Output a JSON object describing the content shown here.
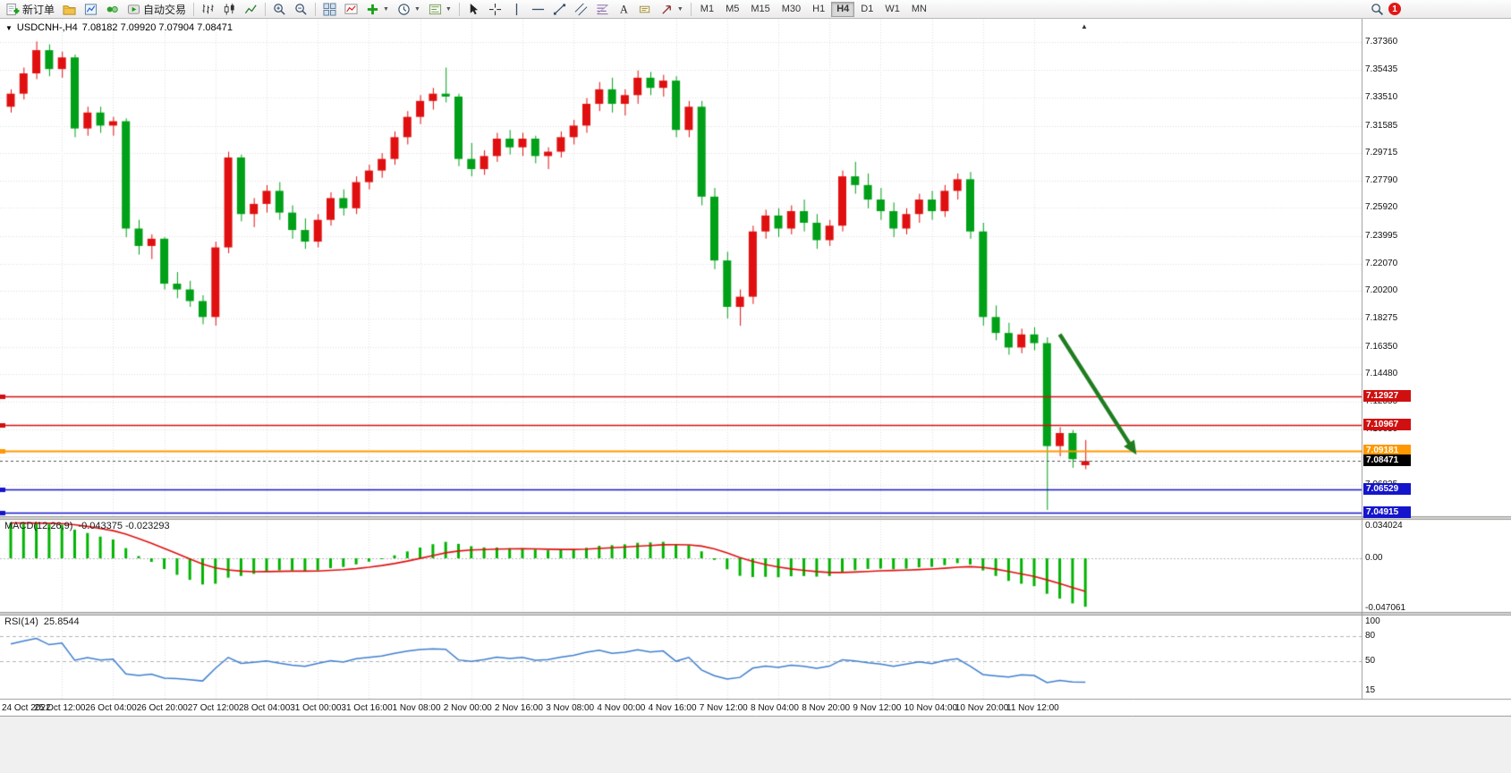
{
  "toolbar": {
    "new_order_label": "新订单",
    "autotrading_label": "自动交易",
    "timeframes": [
      "M1",
      "M5",
      "M15",
      "M30",
      "H1",
      "H4",
      "D1",
      "W1",
      "MN"
    ],
    "active_timeframe": "H4",
    "notification_count": "1"
  },
  "chart_data": {
    "type": "candlestick",
    "title": "USDCNH-,H4",
    "ohlc_text": "7.08182 7.09920 7.07904 7.08471",
    "colors": {
      "up": "#e01010",
      "down": "#00a018",
      "grid": "#e0e0e0",
      "macd_hist": "#00b400",
      "macd_signal": "#e01010",
      "rsi": "#3f7fd0",
      "arrow": "#1f7d1f",
      "axis_text": "#111111"
    },
    "price_axis_ticks": [
      "7.37360",
      "7.35435",
      "7.33510",
      "7.31585",
      "7.29715",
      "7.27790",
      "7.25920",
      "7.23995",
      "7.22070",
      "7.20200",
      "7.18275",
      "7.16350",
      "7.14480",
      "7.12555",
      "7.10630",
      "7.08760",
      "7.06835",
      "7.04910"
    ],
    "x_labels": [
      "24 Oct 2022",
      "25 Oct 12:00",
      "26 Oct 04:00",
      "26 Oct 20:00",
      "27 Oct 12:00",
      "28 Oct 04:00",
      "31 Oct 00:00",
      "31 Oct 16:00",
      "1 Nov 08:00",
      "2 Nov 00:00",
      "2 Nov 16:00",
      "3 Nov 08:00",
      "4 Nov 00:00",
      "4 Nov 16:00",
      "7 Nov 12:00",
      "8 Nov 04:00",
      "8 Nov 20:00",
      "9 Nov 12:00",
      "10 Nov 04:00",
      "10 Nov 20:00",
      "11 Nov 12:00"
    ],
    "candles": [
      [
        7.329,
        7.341,
        7.325,
        7.338
      ],
      [
        7.338,
        7.356,
        7.334,
        7.352
      ],
      [
        7.352,
        7.374,
        7.348,
        7.368
      ],
      [
        7.368,
        7.372,
        7.35,
        7.355
      ],
      [
        7.355,
        7.367,
        7.349,
        7.363
      ],
      [
        7.363,
        7.365,
        7.308,
        7.314
      ],
      [
        7.314,
        7.329,
        7.309,
        7.325
      ],
      [
        7.325,
        7.329,
        7.311,
        7.316
      ],
      [
        7.316,
        7.322,
        7.309,
        7.319
      ],
      [
        7.319,
        7.321,
        7.239,
        7.245
      ],
      [
        7.245,
        7.251,
        7.227,
        7.233
      ],
      [
        7.233,
        7.241,
        7.224,
        7.238
      ],
      [
        7.238,
        7.239,
        7.203,
        7.207
      ],
      [
        7.207,
        7.215,
        7.197,
        7.203
      ],
      [
        7.203,
        7.209,
        7.191,
        7.195
      ],
      [
        7.195,
        7.199,
        7.179,
        7.184
      ],
      [
        7.184,
        7.236,
        7.178,
        7.232
      ],
      [
        7.232,
        7.298,
        7.228,
        7.294
      ],
      [
        7.294,
        7.296,
        7.25,
        7.255
      ],
      [
        7.255,
        7.266,
        7.246,
        7.262
      ],
      [
        7.262,
        7.275,
        7.256,
        7.271
      ],
      [
        7.271,
        7.277,
        7.251,
        7.256
      ],
      [
        7.256,
        7.261,
        7.238,
        7.244
      ],
      [
        7.244,
        7.252,
        7.231,
        7.236
      ],
      [
        7.236,
        7.255,
        7.232,
        7.251
      ],
      [
        7.251,
        7.27,
        7.247,
        7.266
      ],
      [
        7.266,
        7.272,
        7.254,
        7.259
      ],
      [
        7.259,
        7.281,
        7.255,
        7.277
      ],
      [
        7.277,
        7.289,
        7.272,
        7.285
      ],
      [
        7.285,
        7.297,
        7.28,
        7.293
      ],
      [
        7.293,
        7.312,
        7.289,
        7.308
      ],
      [
        7.308,
        7.326,
        7.303,
        7.322
      ],
      [
        7.322,
        7.337,
        7.317,
        7.333
      ],
      [
        7.333,
        7.342,
        7.327,
        7.338
      ],
      [
        7.338,
        7.356,
        7.332,
        7.336
      ],
      [
        7.336,
        7.338,
        7.288,
        7.293
      ],
      [
        7.293,
        7.304,
        7.281,
        7.286
      ],
      [
        7.286,
        7.299,
        7.282,
        7.295
      ],
      [
        7.295,
        7.311,
        7.291,
        7.307
      ],
      [
        7.307,
        7.313,
        7.296,
        7.301
      ],
      [
        7.301,
        7.311,
        7.295,
        7.307
      ],
      [
        7.307,
        7.309,
        7.29,
        7.295
      ],
      [
        7.295,
        7.301,
        7.286,
        7.298
      ],
      [
        7.298,
        7.312,
        7.294,
        7.308
      ],
      [
        7.308,
        7.32,
        7.303,
        7.316
      ],
      [
        7.316,
        7.335,
        7.311,
        7.331
      ],
      [
        7.331,
        7.346,
        7.326,
        7.341
      ],
      [
        7.341,
        7.349,
        7.325,
        7.331
      ],
      [
        7.331,
        7.341,
        7.323,
        7.337
      ],
      [
        7.337,
        7.354,
        7.331,
        7.349
      ],
      [
        7.349,
        7.353,
        7.337,
        7.342
      ],
      [
        7.342,
        7.351,
        7.336,
        7.347
      ],
      [
        7.347,
        7.35,
        7.308,
        7.313
      ],
      [
        7.313,
        7.333,
        7.308,
        7.329
      ],
      [
        7.329,
        7.333,
        7.261,
        7.267
      ],
      [
        7.267,
        7.273,
        7.217,
        7.223
      ],
      [
        7.223,
        7.229,
        7.183,
        7.191
      ],
      [
        7.191,
        7.203,
        7.178,
        7.198
      ],
      [
        7.198,
        7.247,
        7.193,
        7.243
      ],
      [
        7.243,
        7.258,
        7.238,
        7.254
      ],
      [
        7.254,
        7.259,
        7.239,
        7.245
      ],
      [
        7.245,
        7.261,
        7.241,
        7.257
      ],
      [
        7.257,
        7.265,
        7.243,
        7.249
      ],
      [
        7.249,
        7.255,
        7.231,
        7.237
      ],
      [
        7.237,
        7.251,
        7.233,
        7.247
      ],
      [
        7.247,
        7.285,
        7.243,
        7.281
      ],
      [
        7.281,
        7.291,
        7.269,
        7.275
      ],
      [
        7.275,
        7.283,
        7.259,
        7.265
      ],
      [
        7.265,
        7.273,
        7.251,
        7.257
      ],
      [
        7.257,
        7.263,
        7.239,
        7.245
      ],
      [
        7.245,
        7.259,
        7.241,
        7.255
      ],
      [
        7.255,
        7.269,
        7.249,
        7.265
      ],
      [
        7.265,
        7.271,
        7.251,
        7.257
      ],
      [
        7.257,
        7.275,
        7.253,
        7.271
      ],
      [
        7.271,
        7.283,
        7.265,
        7.279
      ],
      [
        7.279,
        7.284,
        7.238,
        7.243
      ],
      [
        7.243,
        7.249,
        7.178,
        7.184
      ],
      [
        7.184,
        7.192,
        7.168,
        7.173
      ],
      [
        7.173,
        7.18,
        7.158,
        7.163
      ],
      [
        7.163,
        7.176,
        7.159,
        7.172
      ],
      [
        7.172,
        7.177,
        7.161,
        7.166
      ],
      [
        7.166,
        7.17,
        7.051,
        7.095
      ],
      [
        7.095,
        7.108,
        7.088,
        7.104
      ],
      [
        7.104,
        7.106,
        7.08,
        7.086
      ],
      [
        7.08182,
        7.0992,
        7.07904,
        7.08471
      ]
    ],
    "horizontal_lines": [
      {
        "price": 7.12927,
        "label": "7.12927",
        "color": "#d01010",
        "width": 1.4
      },
      {
        "price": 7.10967,
        "label": "7.10967",
        "color": "#d01010",
        "width": 1.4
      },
      {
        "price": 7.09181,
        "label": "7.09181",
        "color": "#ff9800",
        "width": 2
      },
      {
        "price": 7.06529,
        "label": "7.06529",
        "color": "#1515cc",
        "width": 1.6
      },
      {
        "price": 7.04915,
        "label": "7.04915",
        "color": "#1515cc",
        "width": 1.6
      }
    ],
    "current_price": {
      "value": 7.08471,
      "label": "7.08471",
      "bg": "#000000"
    },
    "arrow": {
      "from_index": 82,
      "from_price": 7.172,
      "to_index": 88,
      "to_price": 7.089
    },
    "macd": {
      "title": "MACD(12,26,9)",
      "values_text": "-0.043375 -0.023293",
      "fast": 12,
      "slow": 26,
      "signal": 9,
      "axis": [
        "0.034024",
        "0.00",
        "-0.047061"
      ]
    },
    "rsi": {
      "title": "RSI(14)",
      "value_text": "25.8544",
      "period": 14,
      "axis": [
        "100",
        "80",
        "50",
        "15"
      ],
      "levels": [
        80,
        50
      ]
    }
  }
}
